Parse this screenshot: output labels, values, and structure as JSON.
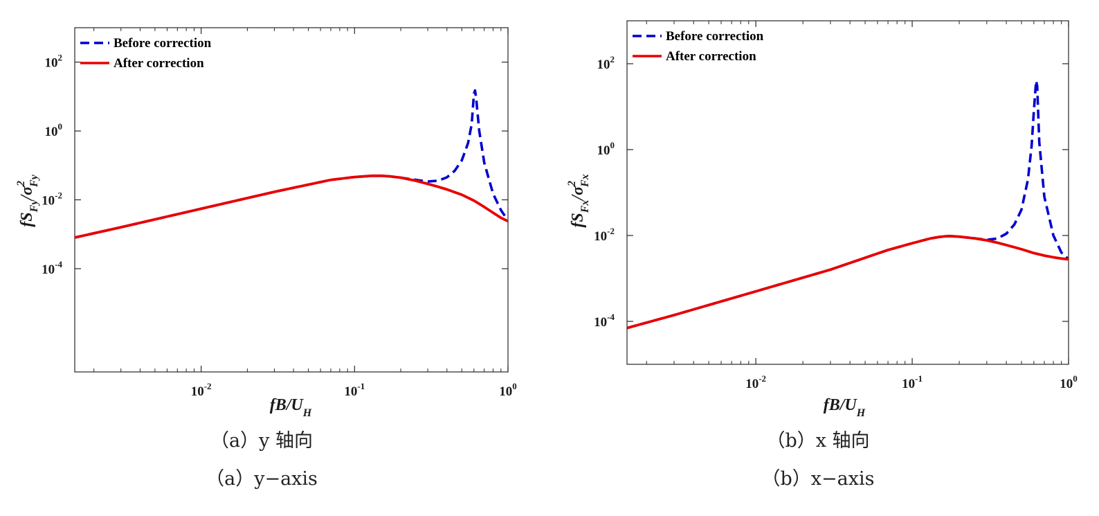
{
  "chart_data": [
    {
      "type": "line",
      "panel": "a",
      "xscale": "log",
      "yscale": "log",
      "xlim": [
        0.0015,
        1
      ],
      "ylim": [
        1e-07,
        1000
      ],
      "xticks": [
        0.01,
        0.1,
        1
      ],
      "xtick_labels": [
        {
          "base": "10",
          "exp": "-2"
        },
        {
          "base": "10",
          "exp": "-1"
        },
        {
          "base": "10",
          "exp": "0"
        }
      ],
      "yticks": [
        0.0001,
        0.01,
        1,
        100
      ],
      "ytick_labels": [
        {
          "base": "10",
          "exp": "-4"
        },
        {
          "base": "10",
          "exp": "-2"
        },
        {
          "base": "10",
          "exp": "0"
        },
        {
          "base": "10",
          "exp": "2"
        }
      ],
      "xlabel": {
        "main": "fB/U",
        "sub": "H"
      },
      "ylabel": {
        "prefix": "fS",
        "sub1": "Fy",
        "mid": "/σ",
        "sup": "2",
        "sub2": "Fy"
      },
      "legend_position": "top-left",
      "series": [
        {
          "name": "Before correction",
          "color": "#0000d0",
          "style": "dashed",
          "x": [
            0.0015,
            0.003,
            0.01,
            0.03,
            0.07,
            0.1,
            0.13,
            0.15,
            0.17,
            0.2,
            0.25,
            0.3,
            0.35,
            0.4,
            0.45,
            0.5,
            0.55,
            0.58,
            0.6,
            0.61,
            0.62,
            0.65,
            0.7,
            0.8,
            0.9,
            1.0
          ],
          "y": [
            0.0008,
            0.0016,
            0.0055,
            0.017,
            0.038,
            0.046,
            0.05,
            0.05,
            0.048,
            0.044,
            0.038,
            0.034,
            0.036,
            0.045,
            0.07,
            0.14,
            0.45,
            1.6,
            12,
            15,
            9,
            1.0,
            0.12,
            0.015,
            0.005,
            0.0025
          ]
        },
        {
          "name": "After correction",
          "color": "#e80000",
          "style": "solid",
          "x": [
            0.0015,
            0.003,
            0.01,
            0.03,
            0.07,
            0.1,
            0.13,
            0.15,
            0.17,
            0.2,
            0.25,
            0.3,
            0.35,
            0.4,
            0.5,
            0.6,
            0.7,
            0.8,
            0.9,
            1.0
          ],
          "y": [
            0.0008,
            0.0016,
            0.0055,
            0.017,
            0.038,
            0.046,
            0.05,
            0.05,
            0.048,
            0.044,
            0.036,
            0.029,
            0.024,
            0.02,
            0.014,
            0.0095,
            0.0062,
            0.0042,
            0.003,
            0.0024
          ]
        }
      ]
    },
    {
      "type": "line",
      "panel": "b",
      "xscale": "log",
      "yscale": "log",
      "xlim": [
        0.0015,
        1
      ],
      "ylim": [
        1e-05,
        1000
      ],
      "xticks": [
        0.01,
        0.1,
        1
      ],
      "xtick_labels": [
        {
          "base": "10",
          "exp": "-2"
        },
        {
          "base": "10",
          "exp": "-1"
        },
        {
          "base": "10",
          "exp": "0"
        }
      ],
      "yticks": [
        0.0001,
        0.01,
        1,
        100
      ],
      "ytick_labels": [
        {
          "base": "10",
          "exp": "-4"
        },
        {
          "base": "10",
          "exp": "-2"
        },
        {
          "base": "10",
          "exp": "0"
        },
        {
          "base": "10",
          "exp": "2"
        }
      ],
      "xlabel": {
        "main": "fB/U",
        "sub": "H"
      },
      "ylabel": {
        "prefix": "fS",
        "sub1": "Fx",
        "mid": "/σ",
        "sup": "2",
        "sub2": "Fx"
      },
      "legend_position": "top-left",
      "series": [
        {
          "name": "Before correction",
          "color": "#0000d0",
          "style": "dashed",
          "x": [
            0.0015,
            0.003,
            0.01,
            0.03,
            0.07,
            0.1,
            0.13,
            0.15,
            0.17,
            0.2,
            0.25,
            0.3,
            0.35,
            0.4,
            0.45,
            0.5,
            0.55,
            0.58,
            0.6,
            0.62,
            0.63,
            0.65,
            0.7,
            0.8,
            0.9,
            1.0
          ],
          "y": [
            7e-05,
            0.00014,
            0.0005,
            0.0016,
            0.0046,
            0.0066,
            0.0085,
            0.0093,
            0.0097,
            0.0094,
            0.0086,
            0.0079,
            0.0085,
            0.011,
            0.018,
            0.04,
            0.2,
            1.2,
            8,
            40,
            30,
            1.5,
            0.08,
            0.01,
            0.004,
            0.0028
          ]
        },
        {
          "name": "After correction",
          "color": "#e80000",
          "style": "solid",
          "x": [
            0.0015,
            0.003,
            0.01,
            0.03,
            0.07,
            0.1,
            0.13,
            0.15,
            0.17,
            0.2,
            0.25,
            0.3,
            0.35,
            0.4,
            0.5,
            0.6,
            0.7,
            0.8,
            0.9,
            1.0
          ],
          "y": [
            7e-05,
            0.00014,
            0.0005,
            0.0016,
            0.0046,
            0.0066,
            0.0085,
            0.0093,
            0.0097,
            0.0094,
            0.0086,
            0.0077,
            0.0068,
            0.006,
            0.0048,
            0.0039,
            0.0034,
            0.0031,
            0.0029,
            0.0028
          ]
        }
      ]
    }
  ],
  "captions": {
    "a": {
      "cn": "（a）y 轴向",
      "en": "（a）y−axis"
    },
    "b": {
      "cn": "（b）x 轴向",
      "en": "（b）x−axis"
    }
  }
}
